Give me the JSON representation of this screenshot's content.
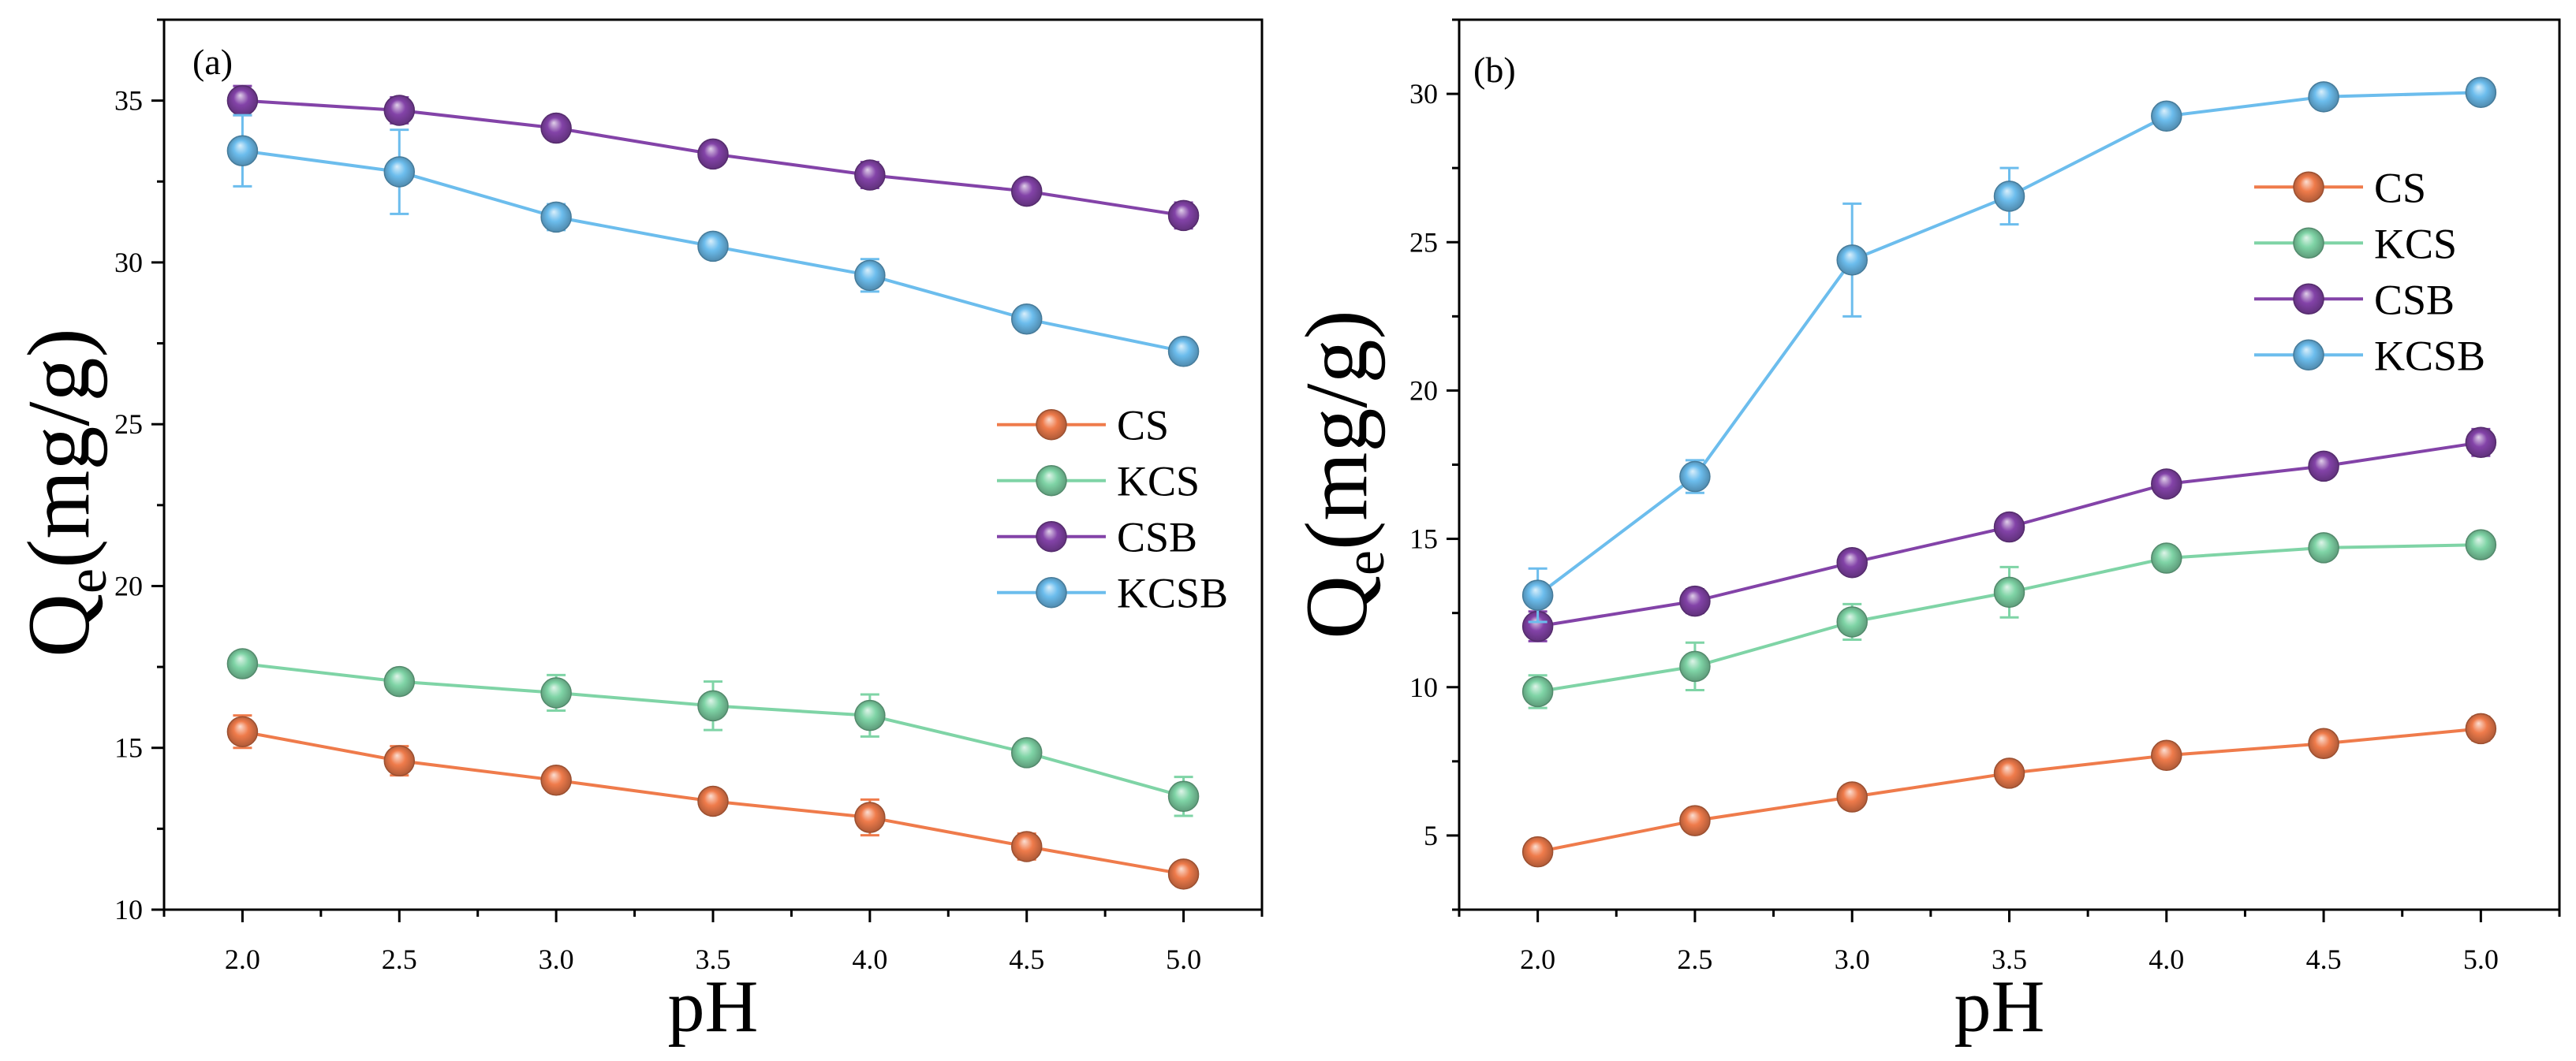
{
  "chart_data": [
    {
      "type": "line",
      "panel_label": "(a)",
      "xlabel": "pH",
      "ylabel": {
        "main": "Q",
        "sub": "e",
        "unit": "(mg/g)"
      },
      "x": [
        2.0,
        2.5,
        3.0,
        3.5,
        4.0,
        4.5,
        5.0
      ],
      "x_ticks": [
        "2.0",
        "2.5",
        "3.0",
        "3.5",
        "4.0",
        "4.5",
        "5.0"
      ],
      "y_ticks": [
        "10",
        "15",
        "20",
        "25",
        "30",
        "35"
      ],
      "xlim": [
        1.75,
        5.25
      ],
      "ylim": [
        10,
        37.5
      ],
      "grid": false,
      "legend": "center-right",
      "series": [
        {
          "name": "CS",
          "color": "#EF7B4B",
          "values": [
            15.5,
            14.6,
            14.0,
            13.35,
            12.85,
            11.95,
            11.1
          ],
          "errors": [
            0.5,
            0.45,
            0.3,
            0.35,
            0.55,
            0.4,
            0.25
          ]
        },
        {
          "name": "KCS",
          "color": "#7FD4A6",
          "values": [
            17.6,
            17.05,
            16.7,
            16.3,
            16.0,
            14.85,
            13.5
          ],
          "errors": [
            0.3,
            0.2,
            0.55,
            0.75,
            0.65,
            0.25,
            0.6
          ]
        },
        {
          "name": "CSB",
          "color": "#8343A8",
          "values": [
            35.0,
            34.7,
            34.15,
            33.35,
            32.7,
            32.2,
            31.45
          ],
          "errors": [
            0.45,
            0.4,
            0.35,
            0.2,
            0.4,
            0.3,
            0.4
          ]
        },
        {
          "name": "KCSB",
          "color": "#6CBDED",
          "values": [
            33.45,
            32.8,
            31.4,
            30.5,
            29.6,
            28.25,
            27.25
          ],
          "errors": [
            1.1,
            1.3,
            0.4,
            0.2,
            0.5,
            0.2,
            0.2
          ]
        }
      ]
    },
    {
      "type": "line",
      "panel_label": "(b)",
      "xlabel": "pH",
      "ylabel": {
        "main": "Q",
        "sub": "e",
        "unit": "(mg/g)"
      },
      "x": [
        2.0,
        2.5,
        3.0,
        3.5,
        4.0,
        4.5,
        5.0
      ],
      "x_ticks": [
        "2.0",
        "2.5",
        "3.0",
        "3.5",
        "4.0",
        "4.5",
        "5.0"
      ],
      "y_ticks": [
        "5",
        "10",
        "15",
        "20",
        "25",
        "30"
      ],
      "xlim": [
        1.75,
        5.25
      ],
      "ylim": [
        2.5,
        32.5
      ],
      "grid": false,
      "legend": "top-right",
      "series": [
        {
          "name": "CS",
          "color": "#EF7B4B",
          "values": [
            4.45,
            5.5,
            6.3,
            7.1,
            7.7,
            8.1,
            8.6
          ],
          "errors": [
            0.3,
            0.2,
            0.2,
            0.2,
            0.2,
            0.2,
            0.4
          ]
        },
        {
          "name": "KCS",
          "color": "#7FD4A6",
          "values": [
            9.85,
            10.7,
            12.2,
            13.2,
            14.35,
            14.7,
            14.8
          ],
          "errors": [
            0.55,
            0.8,
            0.6,
            0.85,
            0.25,
            0.25,
            0.25
          ]
        },
        {
          "name": "CSB",
          "color": "#8343A8",
          "values": [
            12.05,
            12.9,
            14.2,
            15.4,
            16.85,
            17.45,
            18.25
          ],
          "errors": [
            0.5,
            0.4,
            0.35,
            0.3,
            0.3,
            0.3,
            0.45
          ]
        },
        {
          "name": "KCSB",
          "color": "#6CBDED",
          "values": [
            13.1,
            17.1,
            24.4,
            26.55,
            29.25,
            29.9,
            30.05
          ],
          "errors": [
            0.9,
            0.55,
            1.9,
            0.95,
            0.2,
            0.2,
            0.2
          ]
        }
      ]
    }
  ]
}
